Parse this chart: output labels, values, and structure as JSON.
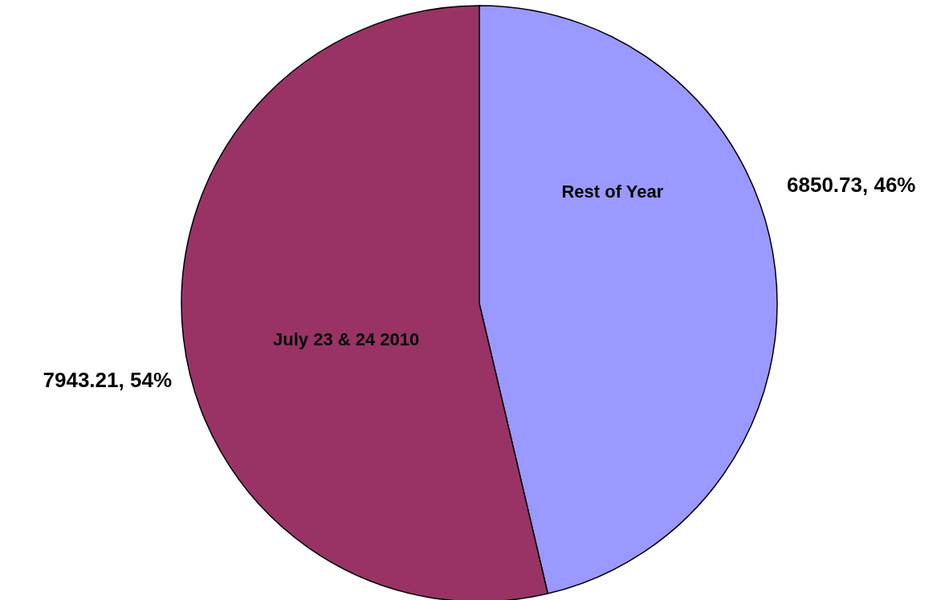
{
  "chart_data": {
    "type": "pie",
    "categories": [
      "Rest of Year",
      "July 23 & 24 2010"
    ],
    "values": [
      6850.73,
      7943.21
    ],
    "colors": [
      "#9999ff",
      "#993366"
    ],
    "value_labels": [
      "6850.73, 46%",
      "7943.21, 54%"
    ]
  }
}
